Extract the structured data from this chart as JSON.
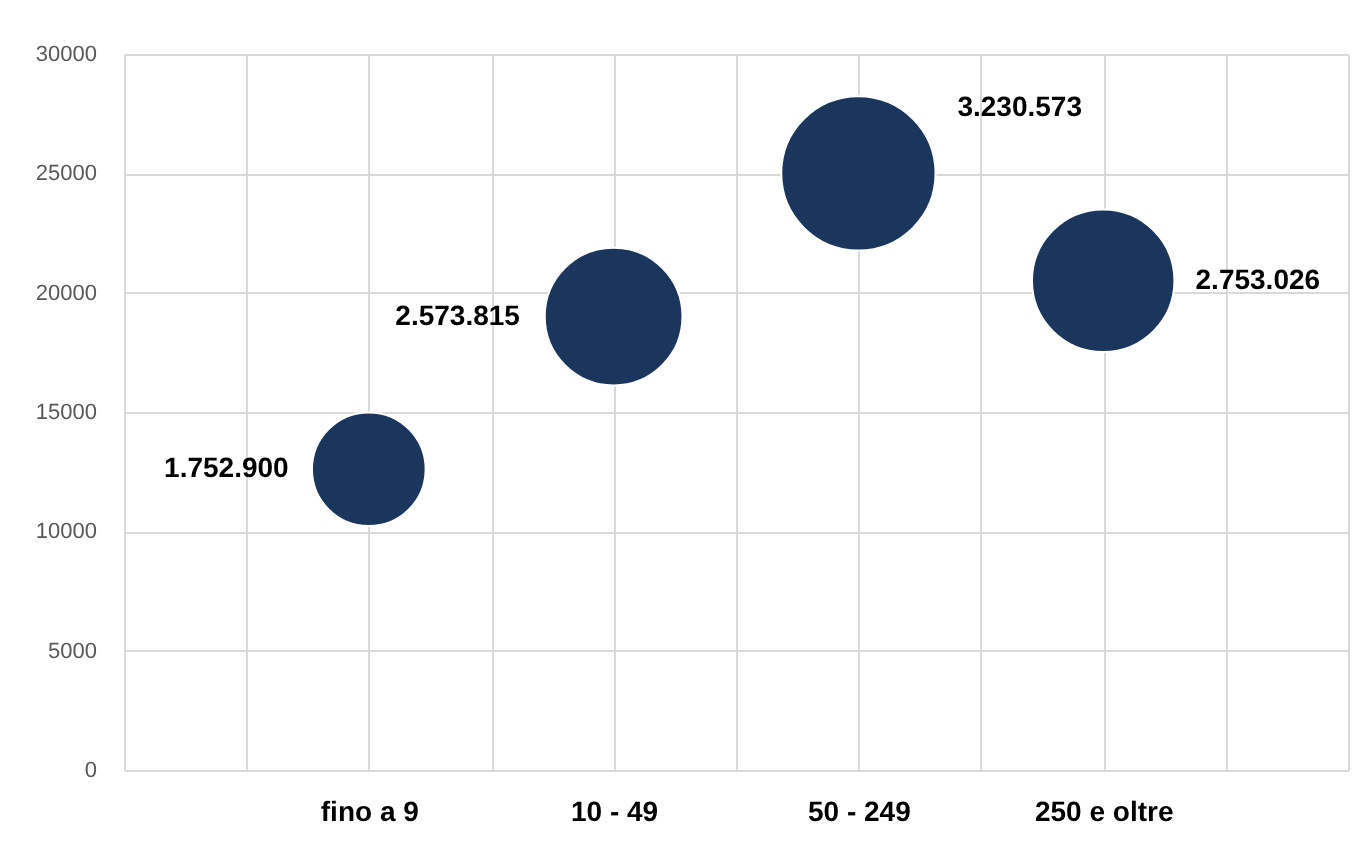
{
  "chart_data": {
    "type": "bubble",
    "categories": [
      null,
      null,
      "fino a 9",
      null,
      "10 - 49",
      null,
      "50 - 249",
      null,
      "250 e oltre",
      null,
      null
    ],
    "values": [
      null,
      null,
      12600,
      null,
      19000,
      null,
      25000,
      null,
      20500,
      null,
      null
    ],
    "sizes": [
      null,
      null,
      1752900,
      null,
      2573815,
      null,
      3230573,
      null,
      2753026,
      null,
      null
    ],
    "value_labels": [
      null,
      null,
      "1.752.900",
      null,
      "2.573.815",
      null,
      "3.230.573",
      null,
      "2.753.026",
      null,
      null
    ],
    "color": "#1b365d",
    "ylim": [
      0,
      30000
    ],
    "yticks": [
      0,
      5000,
      10000,
      15000,
      20000,
      25000,
      30000
    ],
    "grid": true
  }
}
